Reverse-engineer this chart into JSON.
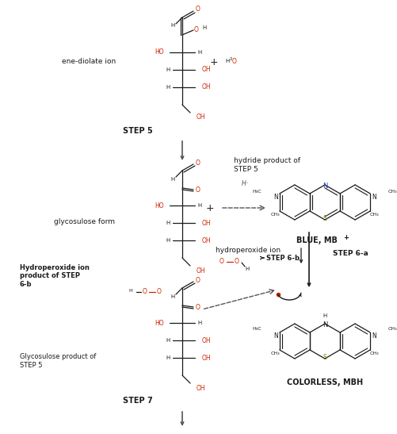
{
  "bg_color": "#ffffff",
  "fig_width": 5.01,
  "fig_height": 5.47,
  "dpi": 100,
  "labels": {
    "ene_diolate": "ene-diolate ion",
    "step5": "STEP 5",
    "glycosulose_form": "glycosulose form",
    "hydride_product": "hydride product of\nSTEP 5",
    "blue_mb": "BLUE, MB",
    "blue_mb_sup": "+",
    "hydroperoxide_ion_label": "hydroperoxide ion",
    "step6b": "STEP 6-b",
    "step6a": "STEP 6-a",
    "hydroperoxide_product_title": "Hydroperoxide ion\nproduct of STEP\n6-b",
    "colorless_mbh": "COLORLESS, MBH",
    "glycosulose_product": "Glycosulose product of\nSTEP 5",
    "step7": "STEP 7",
    "h_minus": "H⁻"
  },
  "colors": {
    "black": "#1a1a1a",
    "red": "#cc2200",
    "gray": "#555555",
    "blue_n": "#2244aa",
    "yellow_s": "#888800"
  }
}
